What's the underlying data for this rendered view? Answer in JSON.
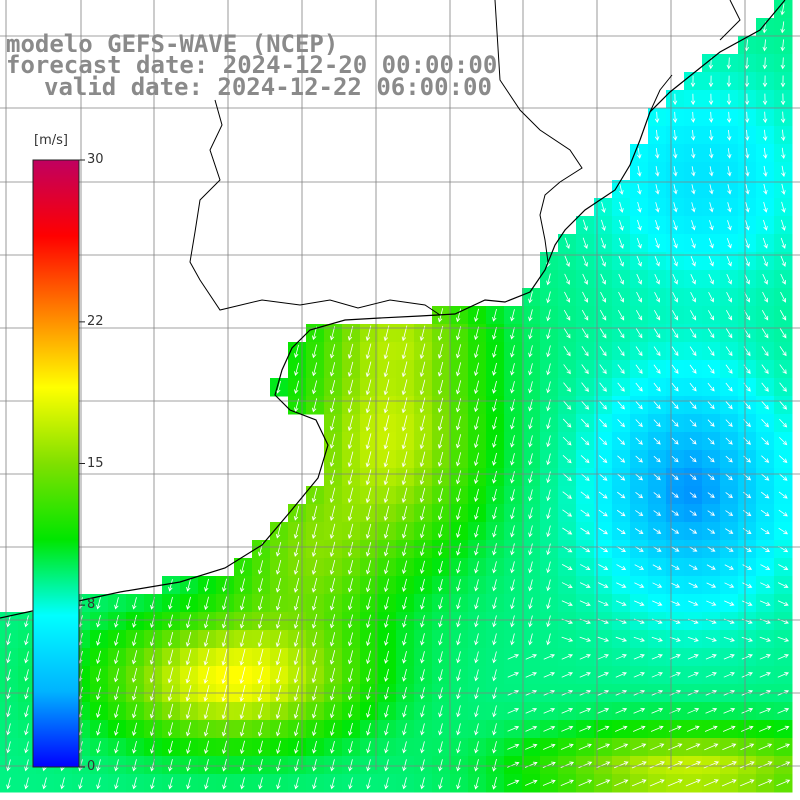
{
  "title": {
    "line1": "modelo GEFS-WAVE (NCEP)",
    "line2": "forecast date: 2024-12-20 00:00:00",
    "line3": "valid date: 2024-12-22 06:00:00"
  },
  "colorbar": {
    "unit": "[m/s]",
    "ticks": [
      "30",
      "22",
      "15",
      "8",
      "0"
    ],
    "tick_values": [
      30,
      22,
      15,
      8,
      0
    ],
    "range": [
      0,
      30
    ],
    "colors": [
      "#0000ff",
      "#00b4ff",
      "#00ffff",
      "#00e600",
      "#80e000",
      "#ffff00",
      "#ff8000",
      "#ff0000",
      "#c00060"
    ]
  },
  "map": {
    "variable": "wind speed and direction",
    "land_color": "#ffffff",
    "grid_color": "#808080",
    "coast_color": "#000000",
    "arrow_color": "#ffffff",
    "region": "South Atlantic off Uruguay / southern Brazil / Argentina"
  }
}
